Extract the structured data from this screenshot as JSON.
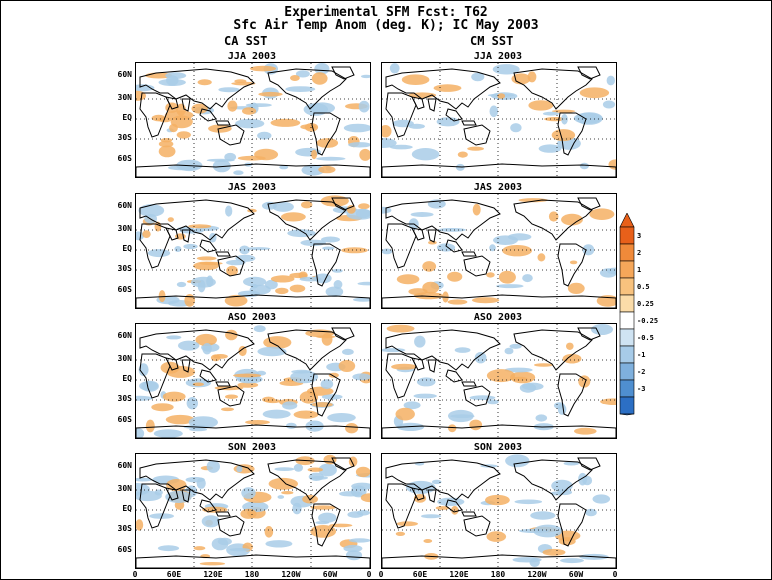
{
  "title_line1": "Experimental SFM Fcst: T62",
  "title_line2": "Sfc Air Temp Anom (deg. K); IC May 2003",
  "columns": [
    "CA SST",
    "CM SST"
  ],
  "periods": [
    "JJA 2003",
    "JAS 2003",
    "ASO 2003",
    "SON 2003"
  ],
  "lat_labels": [
    "60N",
    "30N",
    "EQ",
    "30S",
    "60S"
  ],
  "lon_labels": [
    "0",
    "60E",
    "120E",
    "180",
    "120W",
    "60W",
    "0"
  ],
  "colorbar": {
    "levels": [
      "3",
      "2",
      "1",
      "0.5",
      "0.25",
      "-0.25",
      "-0.5",
      "-1",
      "-2",
      "-3"
    ],
    "colors_warm": [
      "#e8601a",
      "#f08a3a",
      "#f5a75a",
      "#f8c27e",
      "#fbdca9"
    ],
    "colors_cold": [
      "#cfe3f2",
      "#a7cbe8",
      "#7fb0dd",
      "#4f8fd0",
      "#2c6fc4"
    ]
  },
  "colors": {
    "warm": "#f5b064",
    "cold": "#a9cce8",
    "coast": "#000000"
  }
}
